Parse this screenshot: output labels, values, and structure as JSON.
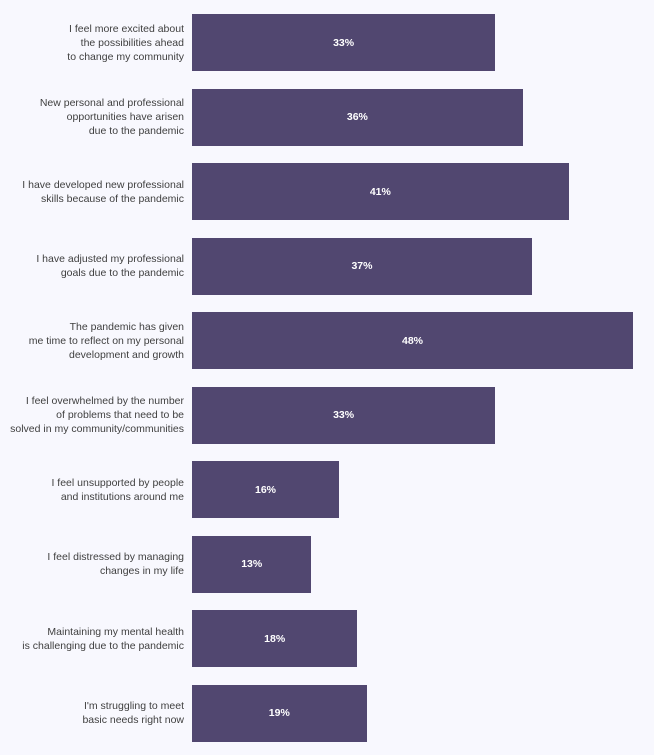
{
  "chart_data": {
    "type": "bar",
    "orientation": "horizontal",
    "bar_color": "#514770",
    "categories": [
      "I feel more excited about \nthe possibilities ahead\nto change my community",
      "New personal and professional\nopportunities have arisen\ndue to the pandemic",
      "I have developed new professional\nskills because of the pandemic",
      "I have adjusted my professional \ngoals due to the pandemic",
      "The pandemic has given \nme time to reflect on my personal\ndevelopment and growth",
      "I feel overwhelmed by the number\nof problems that need to be\nsolved in my community/communities",
      "I feel unsupported by people\nand institutions around me",
      "I feel distressed by managing\nchanges in my life",
      "Maintaining my mental health \nis challenging due to the pandemic",
      "I'm struggling to meet\nbasic needs right now"
    ],
    "values": [
      33,
      36,
      41,
      37,
      48,
      33,
      16,
      13,
      18,
      19
    ],
    "value_labels": [
      "33%",
      "36%",
      "41%",
      "37%",
      "48%",
      "33%",
      "16%",
      "13%",
      "18%",
      "19%"
    ],
    "xlim": [
      0,
      48
    ],
    "title": "",
    "xlabel": "",
    "ylabel": "",
    "grid": false,
    "legend": "none"
  }
}
